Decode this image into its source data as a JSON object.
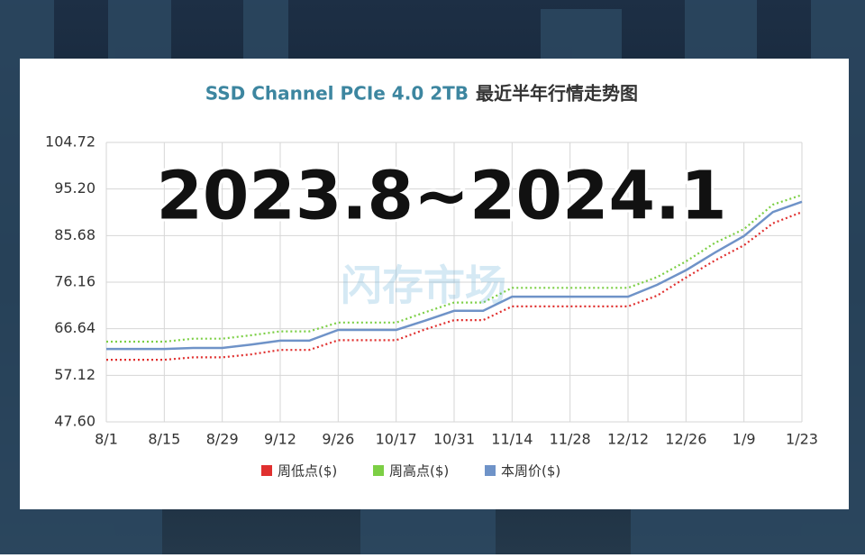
{
  "chart_data": {
    "type": "line",
    "title": "SSD Channel PCIe 4.0 2TB",
    "subtitle": "最近半年行情走势图",
    "annotation": "2023.8~2024.1",
    "watermark": "闪存市场",
    "categories": [
      "8/1",
      null,
      "8/15",
      null,
      "8/29",
      null,
      "9/12",
      null,
      "9/26",
      null,
      "10/17",
      null,
      "10/31",
      null,
      "11/14",
      null,
      "11/28",
      null,
      "12/12",
      null,
      "12/26",
      null,
      "1/9",
      null,
      "1/23"
    ],
    "series": [
      {
        "name": "周低点($)",
        "color": "#e0302f",
        "dash": true,
        "values": [
          60.3,
          60.3,
          60.3,
          60.8,
          60.8,
          61.4,
          62.3,
          62.3,
          64.3,
          64.3,
          64.3,
          66.5,
          68.4,
          68.4,
          71.2,
          71.2,
          71.2,
          71.2,
          71.2,
          73.4,
          77.1,
          80.6,
          83.7,
          88.2,
          90.5
        ]
      },
      {
        "name": "周高点($)",
        "color": "#7ccf45",
        "dash": true,
        "values": [
          64.0,
          64.0,
          64.0,
          64.6,
          64.6,
          65.3,
          66.1,
          66.1,
          67.9,
          67.9,
          67.9,
          70.0,
          72.0,
          72.0,
          75.0,
          75.0,
          75.0,
          75.0,
          75.0,
          77.2,
          80.4,
          84.2,
          87.0,
          92.0,
          94.0
        ]
      },
      {
        "name": "本周价($)",
        "color": "#6f93c8",
        "dash": false,
        "values": [
          62.5,
          62.5,
          62.5,
          62.7,
          62.7,
          63.4,
          64.2,
          64.2,
          66.4,
          66.4,
          66.4,
          68.3,
          70.3,
          70.3,
          73.2,
          73.2,
          73.2,
          73.2,
          73.2,
          75.6,
          78.6,
          82.2,
          85.6,
          90.5,
          92.6
        ]
      }
    ],
    "ylim": [
      47.6,
      104.72
    ],
    "yticks": [
      {
        "value": 47.6,
        "label": "47.60"
      },
      57.12,
      66.64,
      76.16,
      85.68,
      {
        "value": 95.2,
        "label": "95.20"
      },
      104.72
    ],
    "grid": true
  }
}
